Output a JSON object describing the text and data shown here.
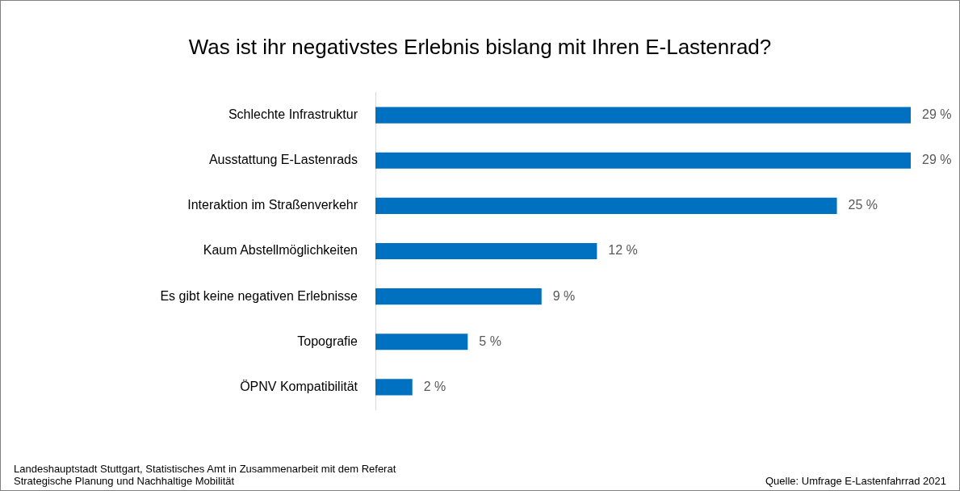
{
  "chart_data": {
    "type": "bar",
    "orientation": "horizontal",
    "title": "Was ist ihr negativstes Erlebnis bislang mit Ihren E-Lastenrad?",
    "categories": [
      "Schlechte Infrastruktur",
      "Ausstattung E-Lastenrads",
      "Interaktion im Straßenverkehr",
      "Kaum Abstellmöglichkeiten",
      "Es gibt keine negativen Erlebnisse",
      "Topografie",
      "ÖPNV Kompatibilität"
    ],
    "values": [
      29,
      29,
      25,
      12,
      9,
      5,
      2
    ],
    "value_labels": [
      "29 %",
      "29 %",
      "25 %",
      "12 %",
      "9 %",
      "5 %",
      "2 %"
    ],
    "color": "#0070c0",
    "annotations": [
      "Landeshauptstadt Stuttgart, Statistisches Amt in Zusammenarbeit mit dem Referat Strategische Planung und Nachhaltige Mobilität",
      "Quelle: Umfrage E-Lastenfahrrad 2021"
    ]
  }
}
